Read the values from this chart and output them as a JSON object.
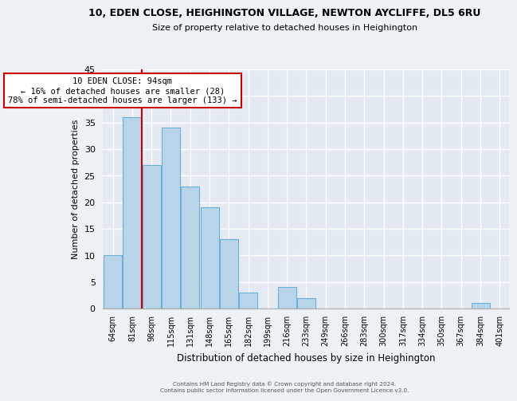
{
  "title": "10, EDEN CLOSE, HEIGHINGTON VILLAGE, NEWTON AYCLIFFE, DL5 6RU",
  "subtitle": "Size of property relative to detached houses in Heighington",
  "xlabel": "Distribution of detached houses by size in Heighington",
  "ylabel": "Number of detached properties",
  "bin_labels": [
    "64sqm",
    "81sqm",
    "98sqm",
    "115sqm",
    "131sqm",
    "148sqm",
    "165sqm",
    "182sqm",
    "199sqm",
    "216sqm",
    "233sqm",
    "249sqm",
    "266sqm",
    "283sqm",
    "300sqm",
    "317sqm",
    "334sqm",
    "350sqm",
    "367sqm",
    "384sqm",
    "401sqm"
  ],
  "bar_heights": [
    10,
    36,
    27,
    34,
    23,
    19,
    13,
    3,
    0,
    4,
    2,
    0,
    0,
    0,
    0,
    0,
    0,
    0,
    0,
    1,
    0
  ],
  "bar_color": "#b8d4e8",
  "bar_edge_color": "#6aafd6",
  "vline_color": "#cc0000",
  "annotation_text": "10 EDEN CLOSE: 94sqm\n← 16% of detached houses are smaller (28)\n78% of semi-detached houses are larger (133) →",
  "annotation_box_color": "#ffffff",
  "annotation_box_edge": "#cc0000",
  "ylim": [
    0,
    45
  ],
  "yticks": [
    0,
    5,
    10,
    15,
    20,
    25,
    30,
    35,
    40,
    45
  ],
  "footer1": "Contains HM Land Registry data © Crown copyright and database right 2024.",
  "footer2": "Contains public sector information licensed under the Open Government Licence v3.0.",
  "bg_color": "#eef2f7",
  "plot_bg_color": "#e4eaf2"
}
